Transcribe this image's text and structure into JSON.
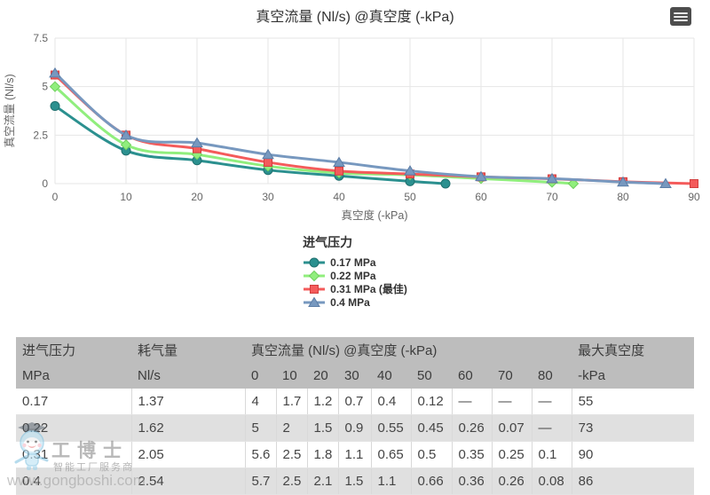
{
  "chart_data": {
    "type": "line",
    "title": "真空流量 (Nl/s) @真空度 (-kPa)",
    "xlabel": "真空度 (-kPa)",
    "ylabel": "真空流量 (Nl/s)",
    "xlim": [
      0,
      90
    ],
    "ylim": [
      0,
      7.5
    ],
    "x_ticks": [
      0,
      10,
      20,
      30,
      40,
      50,
      60,
      70,
      80,
      90
    ],
    "y_ticks": [
      0,
      2.5,
      5,
      7.5
    ],
    "grid": true,
    "legend_position": "bottom",
    "legend_title": "进气压力",
    "series": [
      {
        "name": "0.17 MPa",
        "color": "#2b908f",
        "edge": "#20706f",
        "marker": "circle",
        "x": [
          0,
          10,
          20,
          30,
          40,
          50,
          55
        ],
        "y": [
          4,
          1.7,
          1.2,
          0.7,
          0.4,
          0.12,
          0
        ]
      },
      {
        "name": "0.22 MPa",
        "color": "#90ee7d",
        "edge": "#6fcf5d",
        "marker": "diamond",
        "x": [
          0,
          10,
          20,
          30,
          40,
          50,
          60,
          70,
          73
        ],
        "y": [
          5,
          2,
          1.5,
          0.9,
          0.55,
          0.45,
          0.26,
          0.07,
          0
        ]
      },
      {
        "name": "0.31 MPa (最佳)",
        "color": "#f45b5b",
        "edge": "#d23f3f",
        "marker": "square",
        "x": [
          0,
          10,
          20,
          30,
          40,
          50,
          60,
          70,
          80,
          90
        ],
        "y": [
          5.6,
          2.5,
          1.8,
          1.1,
          0.65,
          0.5,
          0.35,
          0.25,
          0.1,
          0
        ]
      },
      {
        "name": "0.4 MPa",
        "color": "#7798bf",
        "edge": "#5c7da6",
        "marker": "triangle",
        "x": [
          0,
          10,
          20,
          30,
          40,
          50,
          60,
          70,
          80,
          86
        ],
        "y": [
          5.7,
          2.5,
          2.1,
          1.5,
          1.1,
          0.66,
          0.36,
          0.26,
          0.08,
          0
        ]
      }
    ]
  },
  "table": {
    "header": {
      "pressure": {
        "title": "进气压力",
        "unit": "MPa"
      },
      "consumption": {
        "title": "耗气量",
        "unit": "Nl/s"
      },
      "flow": {
        "title": "真空流量 (Nl/s) @真空度 (-kPa)",
        "cols": [
          "0",
          "10",
          "20",
          "30",
          "40",
          "50",
          "60",
          "70",
          "80"
        ]
      },
      "max_vacuum": {
        "title": "最大真空度",
        "unit": "-kPa"
      }
    },
    "rows": [
      [
        "0.17",
        "1.37",
        "4",
        "1.7",
        "1.2",
        "0.7",
        "0.4",
        "0.12",
        "—",
        "—",
        "—",
        "55"
      ],
      [
        "0.22",
        "1.62",
        "5",
        "2",
        "1.5",
        "0.9",
        "0.55",
        "0.45",
        "0.26",
        "0.07",
        "—",
        "73"
      ],
      [
        "0.31",
        "2.05",
        "5.6",
        "2.5",
        "1.8",
        "1.1",
        "0.65",
        "0.5",
        "0.35",
        "0.25",
        "0.1",
        "90"
      ],
      [
        "0.4",
        "2.54",
        "5.7",
        "2.5",
        "2.1",
        "1.5",
        "1.1",
        "0.66",
        "0.36",
        "0.26",
        "0.08",
        "86"
      ]
    ]
  },
  "watermark": {
    "brand": "工博士",
    "tagline": "智能工厂服务商",
    "url": "www.gongboshi.com"
  }
}
